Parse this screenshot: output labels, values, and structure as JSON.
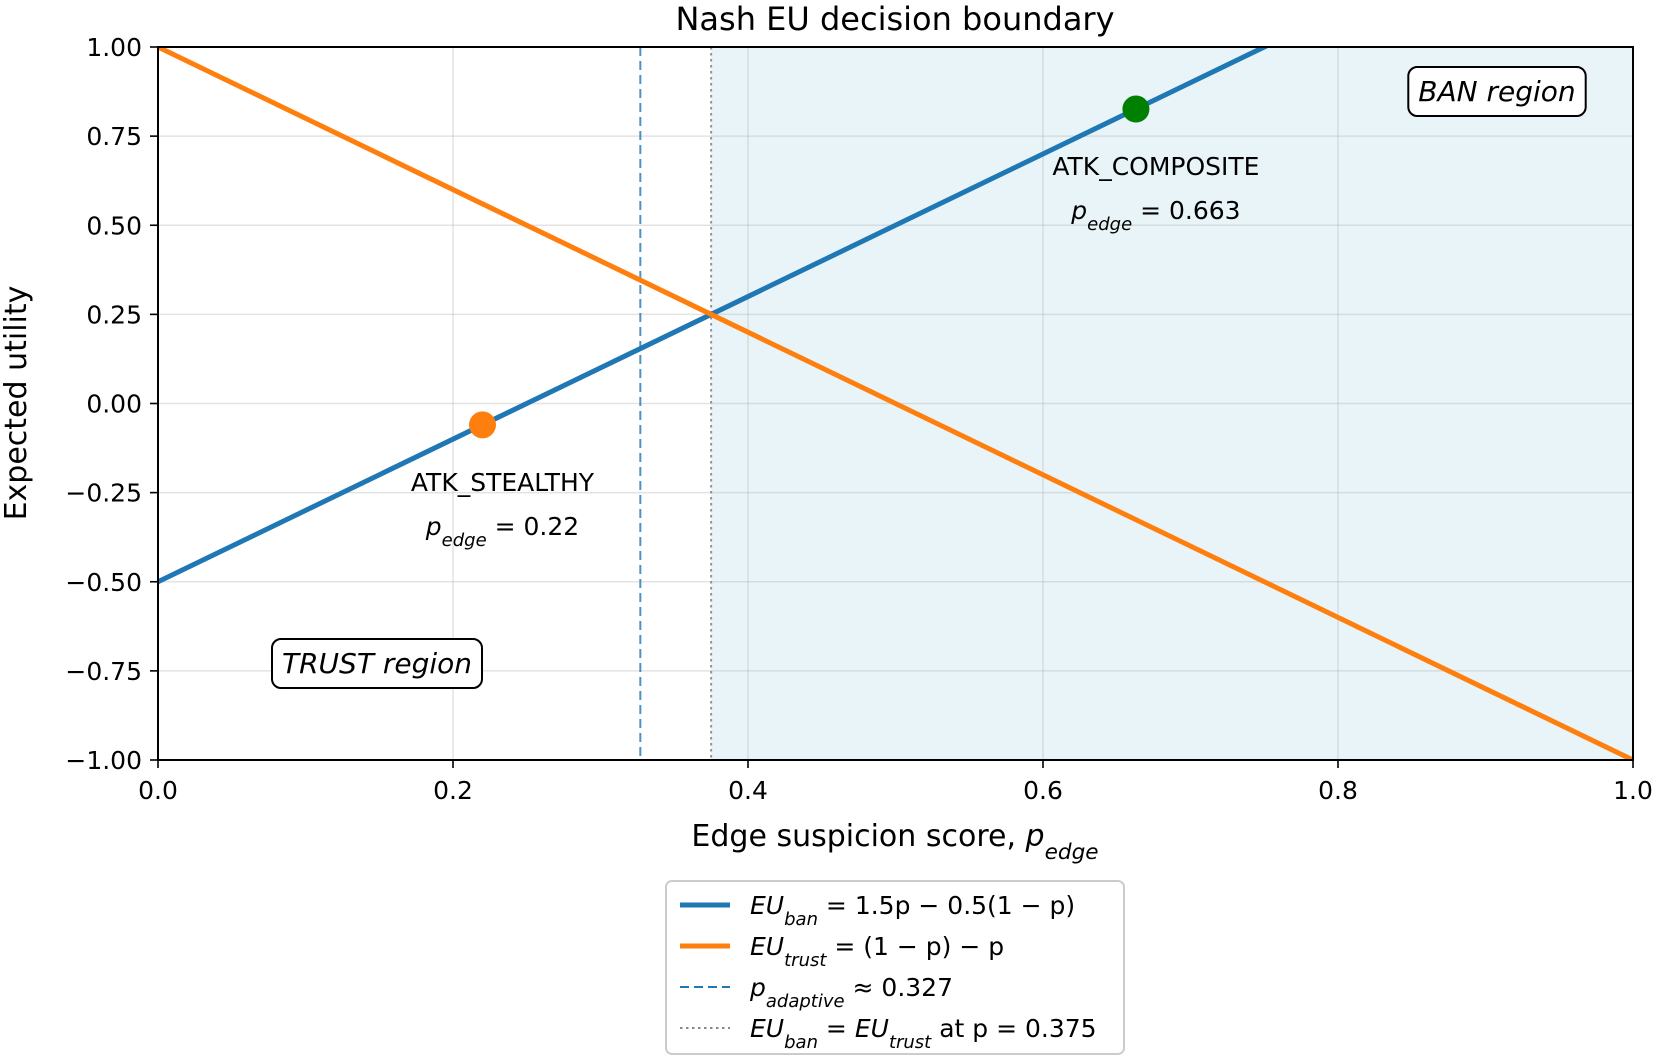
{
  "chart_data": {
    "type": "line",
    "title": "Nash EU decision boundary",
    "xlabel": {
      "main": "Edge suspicion score, ",
      "var": "p",
      "sub": "edge"
    },
    "ylabel": "Expected utility",
    "xlim": [
      0.0,
      1.0
    ],
    "ylim": [
      -1.0,
      1.0
    ],
    "xticks": [
      0.0,
      0.2,
      0.4,
      0.6,
      0.8,
      1.0
    ],
    "xtick_labels": [
      "0.0",
      "0.2",
      "0.4",
      "0.6",
      "0.8",
      "1.0"
    ],
    "yticks": [
      -1.0,
      -0.75,
      -0.5,
      -0.25,
      0.0,
      0.25,
      0.5,
      0.75,
      1.0
    ],
    "ytick_labels": [
      "−1.00",
      "−0.75",
      "−0.50",
      "−0.25",
      "0.00",
      "0.25",
      "0.50",
      "0.75",
      "1.00"
    ],
    "grid": true,
    "legend_position": "below",
    "series": [
      {
        "id": "eu_ban",
        "legend": {
          "var": "EU",
          "sub": "ban",
          "rest": " = 1.5p − 0.5(1 − p)"
        },
        "color": "#1f77b4",
        "style": "solid",
        "x": [
          0.0,
          1.0
        ],
        "y": [
          -0.5,
          1.5
        ]
      },
      {
        "id": "eu_trust",
        "legend": {
          "var": "EU",
          "sub": "trust",
          "rest": " = (1 − p) − p"
        },
        "color": "#ff7f0e",
        "style": "solid",
        "x": [
          0.0,
          1.0
        ],
        "y": [
          1.0,
          -1.0
        ]
      }
    ],
    "vlines": [
      {
        "id": "p_adaptive",
        "x": 0.327,
        "color": "#1f77b4",
        "style": "dashed",
        "legend": {
          "var": "p",
          "sub": "adaptive",
          "rest": " ≈ 0.327"
        }
      },
      {
        "id": "eu_equal",
        "x": 0.375,
        "color": "#888888",
        "style": "dotted",
        "legend": {
          "var": "EU",
          "sub": "ban",
          "mid": " = ",
          "var2": "EU",
          "sub2": "trust",
          "rest": " at p = 0.375"
        }
      }
    ],
    "shaded_region": {
      "x_from": 0.375,
      "x_to": 1.0,
      "color": "#add8e6"
    },
    "points": [
      {
        "id": "atk_stealthy",
        "name": "ATK_STEALTHY",
        "x": 0.22,
        "y": -0.06,
        "color": "#ff7f0e",
        "label_line1": "ATK_STEALTHY",
        "label_var": "p",
        "label_sub": "edge",
        "label_rest": " = 0.22"
      },
      {
        "id": "atk_composite",
        "name": "ATK_COMPOSITE",
        "x": 0.663,
        "y": 0.826,
        "color": "#008000",
        "label_line1": "ATK_COMPOSITE",
        "label_var": "p",
        "label_sub": "edge",
        "label_rest": " = 0.663"
      }
    ],
    "region_labels": [
      {
        "id": "ban",
        "text": "BAN region"
      },
      {
        "id": "trust",
        "text": "TRUST region"
      }
    ]
  }
}
